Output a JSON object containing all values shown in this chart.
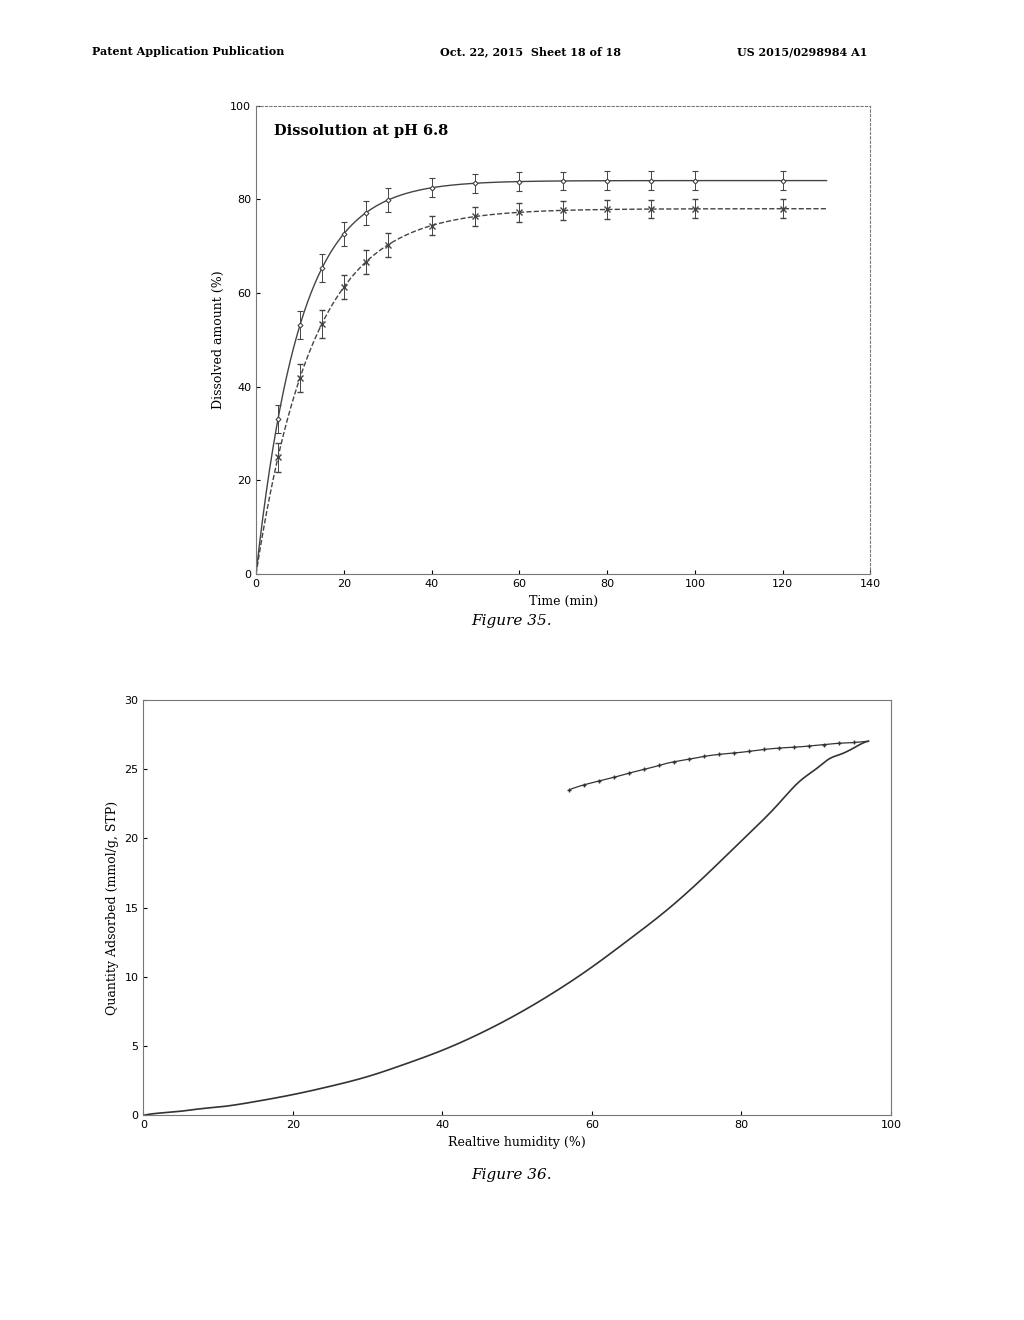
{
  "fig35": {
    "title": "Dissolution at pH 6.8",
    "xlabel": "Time (min)",
    "ylabel": "Dissolved amount (%)",
    "xlim": [
      0,
      140
    ],
    "ylim": [
      0,
      100
    ],
    "xticks": [
      0,
      20,
      40,
      60,
      80,
      100,
      120,
      140
    ],
    "yticks": [
      0,
      20,
      40,
      60,
      80,
      100
    ],
    "curve1_asymptote": 78,
    "curve1_rate": 13,
    "curve2_asymptote": 84,
    "curve2_rate": 10,
    "data1_x": [
      5,
      10,
      15,
      20,
      25,
      30,
      40,
      50,
      60,
      70,
      80,
      90,
      100,
      120
    ],
    "data2_x": [
      5,
      10,
      15,
      20,
      25,
      30,
      40,
      50,
      60,
      70,
      80,
      90,
      100,
      120
    ],
    "err1": [
      3,
      3,
      3,
      2.5,
      2.5,
      2.5,
      2,
      2,
      2,
      2,
      2,
      2,
      2,
      2
    ],
    "err2": [
      3,
      3,
      3,
      2.5,
      2.5,
      2.5,
      2,
      2,
      2,
      2,
      2,
      2,
      2,
      2
    ],
    "line_color1": "#444444",
    "line_color2": "#444444",
    "line_style1": "--",
    "line_style2": "-"
  },
  "fig36": {
    "xlabel": "Realtive humidity (%)",
    "ylabel": "Quantity Adsorbed (mmol/g, STP)",
    "xlim": [
      0,
      100
    ],
    "ylim": [
      0,
      30
    ],
    "xticks": [
      0,
      20,
      40,
      60,
      80,
      100
    ],
    "yticks": [
      0,
      5,
      10,
      15,
      20,
      25,
      30
    ],
    "ads_x": [
      0,
      1,
      3,
      5,
      8,
      10,
      15,
      20,
      25,
      30,
      35,
      40,
      45,
      50,
      55,
      60,
      65,
      70,
      75,
      80,
      85,
      88,
      90,
      92,
      93,
      95,
      96,
      97
    ],
    "ads_y": [
      0.0,
      0.1,
      0.2,
      0.3,
      0.5,
      0.6,
      1.0,
      1.5,
      2.1,
      2.8,
      3.7,
      4.7,
      5.9,
      7.3,
      8.9,
      10.7,
      12.7,
      14.8,
      17.2,
      19.8,
      22.5,
      24.2,
      25.0,
      25.8,
      26.0,
      26.5,
      26.8,
      27.0
    ],
    "des_x": [
      57,
      60,
      63,
      65,
      68,
      70,
      73,
      75,
      78,
      80,
      83,
      85,
      88,
      90,
      92,
      93,
      95,
      96,
      97
    ],
    "des_y": [
      23.5,
      24.0,
      24.4,
      24.7,
      25.1,
      25.4,
      25.7,
      25.9,
      26.1,
      26.2,
      26.4,
      26.5,
      26.6,
      26.7,
      26.8,
      26.85,
      26.9,
      26.95,
      27.0
    ],
    "line_color": "#333333"
  },
  "header_left": "Patent Application Publication",
  "header_mid": "Oct. 22, 2015  Sheet 18 of 18",
  "header_right": "US 2015/0298984 A1",
  "fig35_caption": "Figure 35.",
  "fig36_caption": "Figure 36.",
  "bg_color": "#ffffff",
  "text_color": "#000000"
}
